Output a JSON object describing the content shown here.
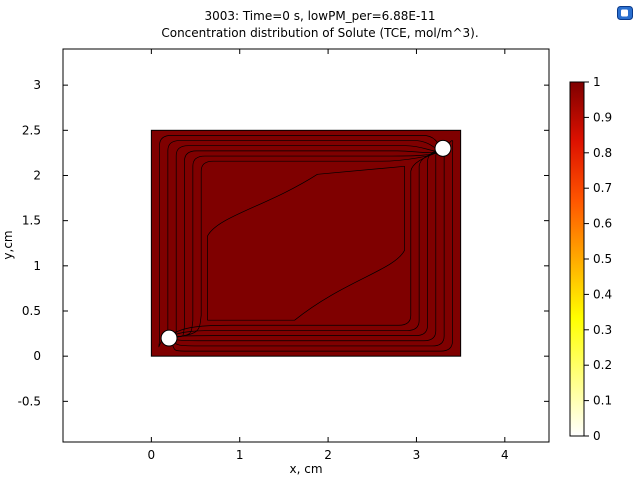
{
  "chart_data": {
    "type": "heatmap",
    "title": "3003: Time=0 s, lowPM_per=6.88E-11",
    "subtitle": "Concentration distribution of Solute (TCE, mol/m^3).",
    "xlabel": "x, cm",
    "ylabel": "y,cm",
    "xlim": [
      -1,
      4.5
    ],
    "ylim": [
      -0.95,
      3.4
    ],
    "x_ticks": [
      0,
      1,
      2,
      3,
      4
    ],
    "y_ticks": [
      -0.5,
      0,
      0.5,
      1,
      1.5,
      2,
      2.5,
      3
    ],
    "domain": {
      "x": [
        0,
        3.5
      ],
      "y": [
        0,
        2.5
      ]
    },
    "value_everywhere": 1,
    "fill_color": "#7f0000",
    "wells": [
      {
        "x": 0.2,
        "y": 0.2,
        "r": 0.09
      },
      {
        "x": 3.3,
        "y": 2.3,
        "r": 0.09
      }
    ],
    "colorbar": {
      "min": 0,
      "max": 1,
      "ticks": [
        0,
        0.1,
        0.2,
        0.3,
        0.4,
        0.5,
        0.6,
        0.7,
        0.8,
        0.9,
        1
      ],
      "colors": [
        "#ffffff",
        "#ffff80",
        "#ffff00",
        "#ffaa00",
        "#ff5500",
        "#dd1100",
        "#7f0000"
      ]
    }
  },
  "logo_icon": "comsol-logo-icon"
}
